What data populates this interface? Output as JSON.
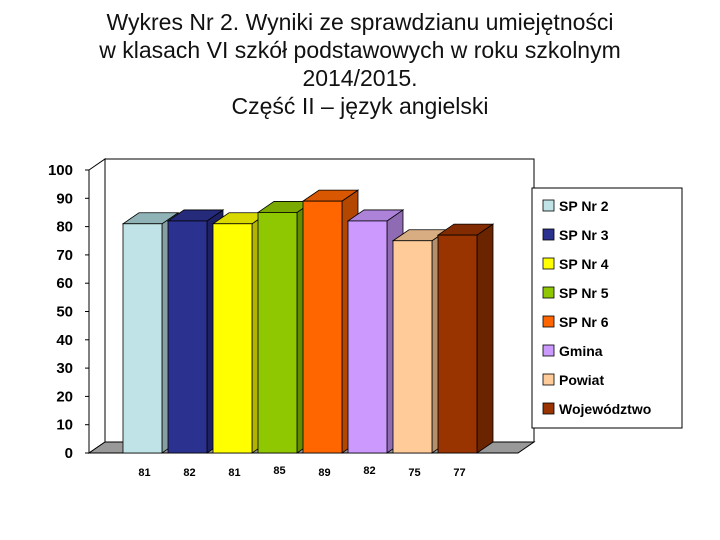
{
  "title_lines": [
    "Wykres Nr 2. Wyniki ze sprawdzianu umiejętności",
    "w klasach VI szkół podstawowych w roku szkolnym",
    "2014/2015.",
    "Część II – język angielski"
  ],
  "chart_data": {
    "type": "bar",
    "categories": [
      "SP Nr 2",
      "SP Nr 3",
      "SP Nr 4",
      "SP Nr 5",
      "SP Nr 6",
      "Gmina",
      "Powiat",
      "Województwo"
    ],
    "values": [
      81,
      82,
      81,
      85,
      89,
      82,
      75,
      77
    ],
    "ylim": [
      0,
      100
    ],
    "yticks": [
      0,
      10,
      20,
      30,
      40,
      50,
      60,
      70,
      80,
      90,
      100
    ],
    "colors": [
      "#bfe3e6",
      "#2b318f",
      "#ffff00",
      "#8fc800",
      "#ff6600",
      "#cc99ff",
      "#ffcc99",
      "#993300"
    ],
    "grid": false,
    "legend_position": "right",
    "three_d": true
  }
}
